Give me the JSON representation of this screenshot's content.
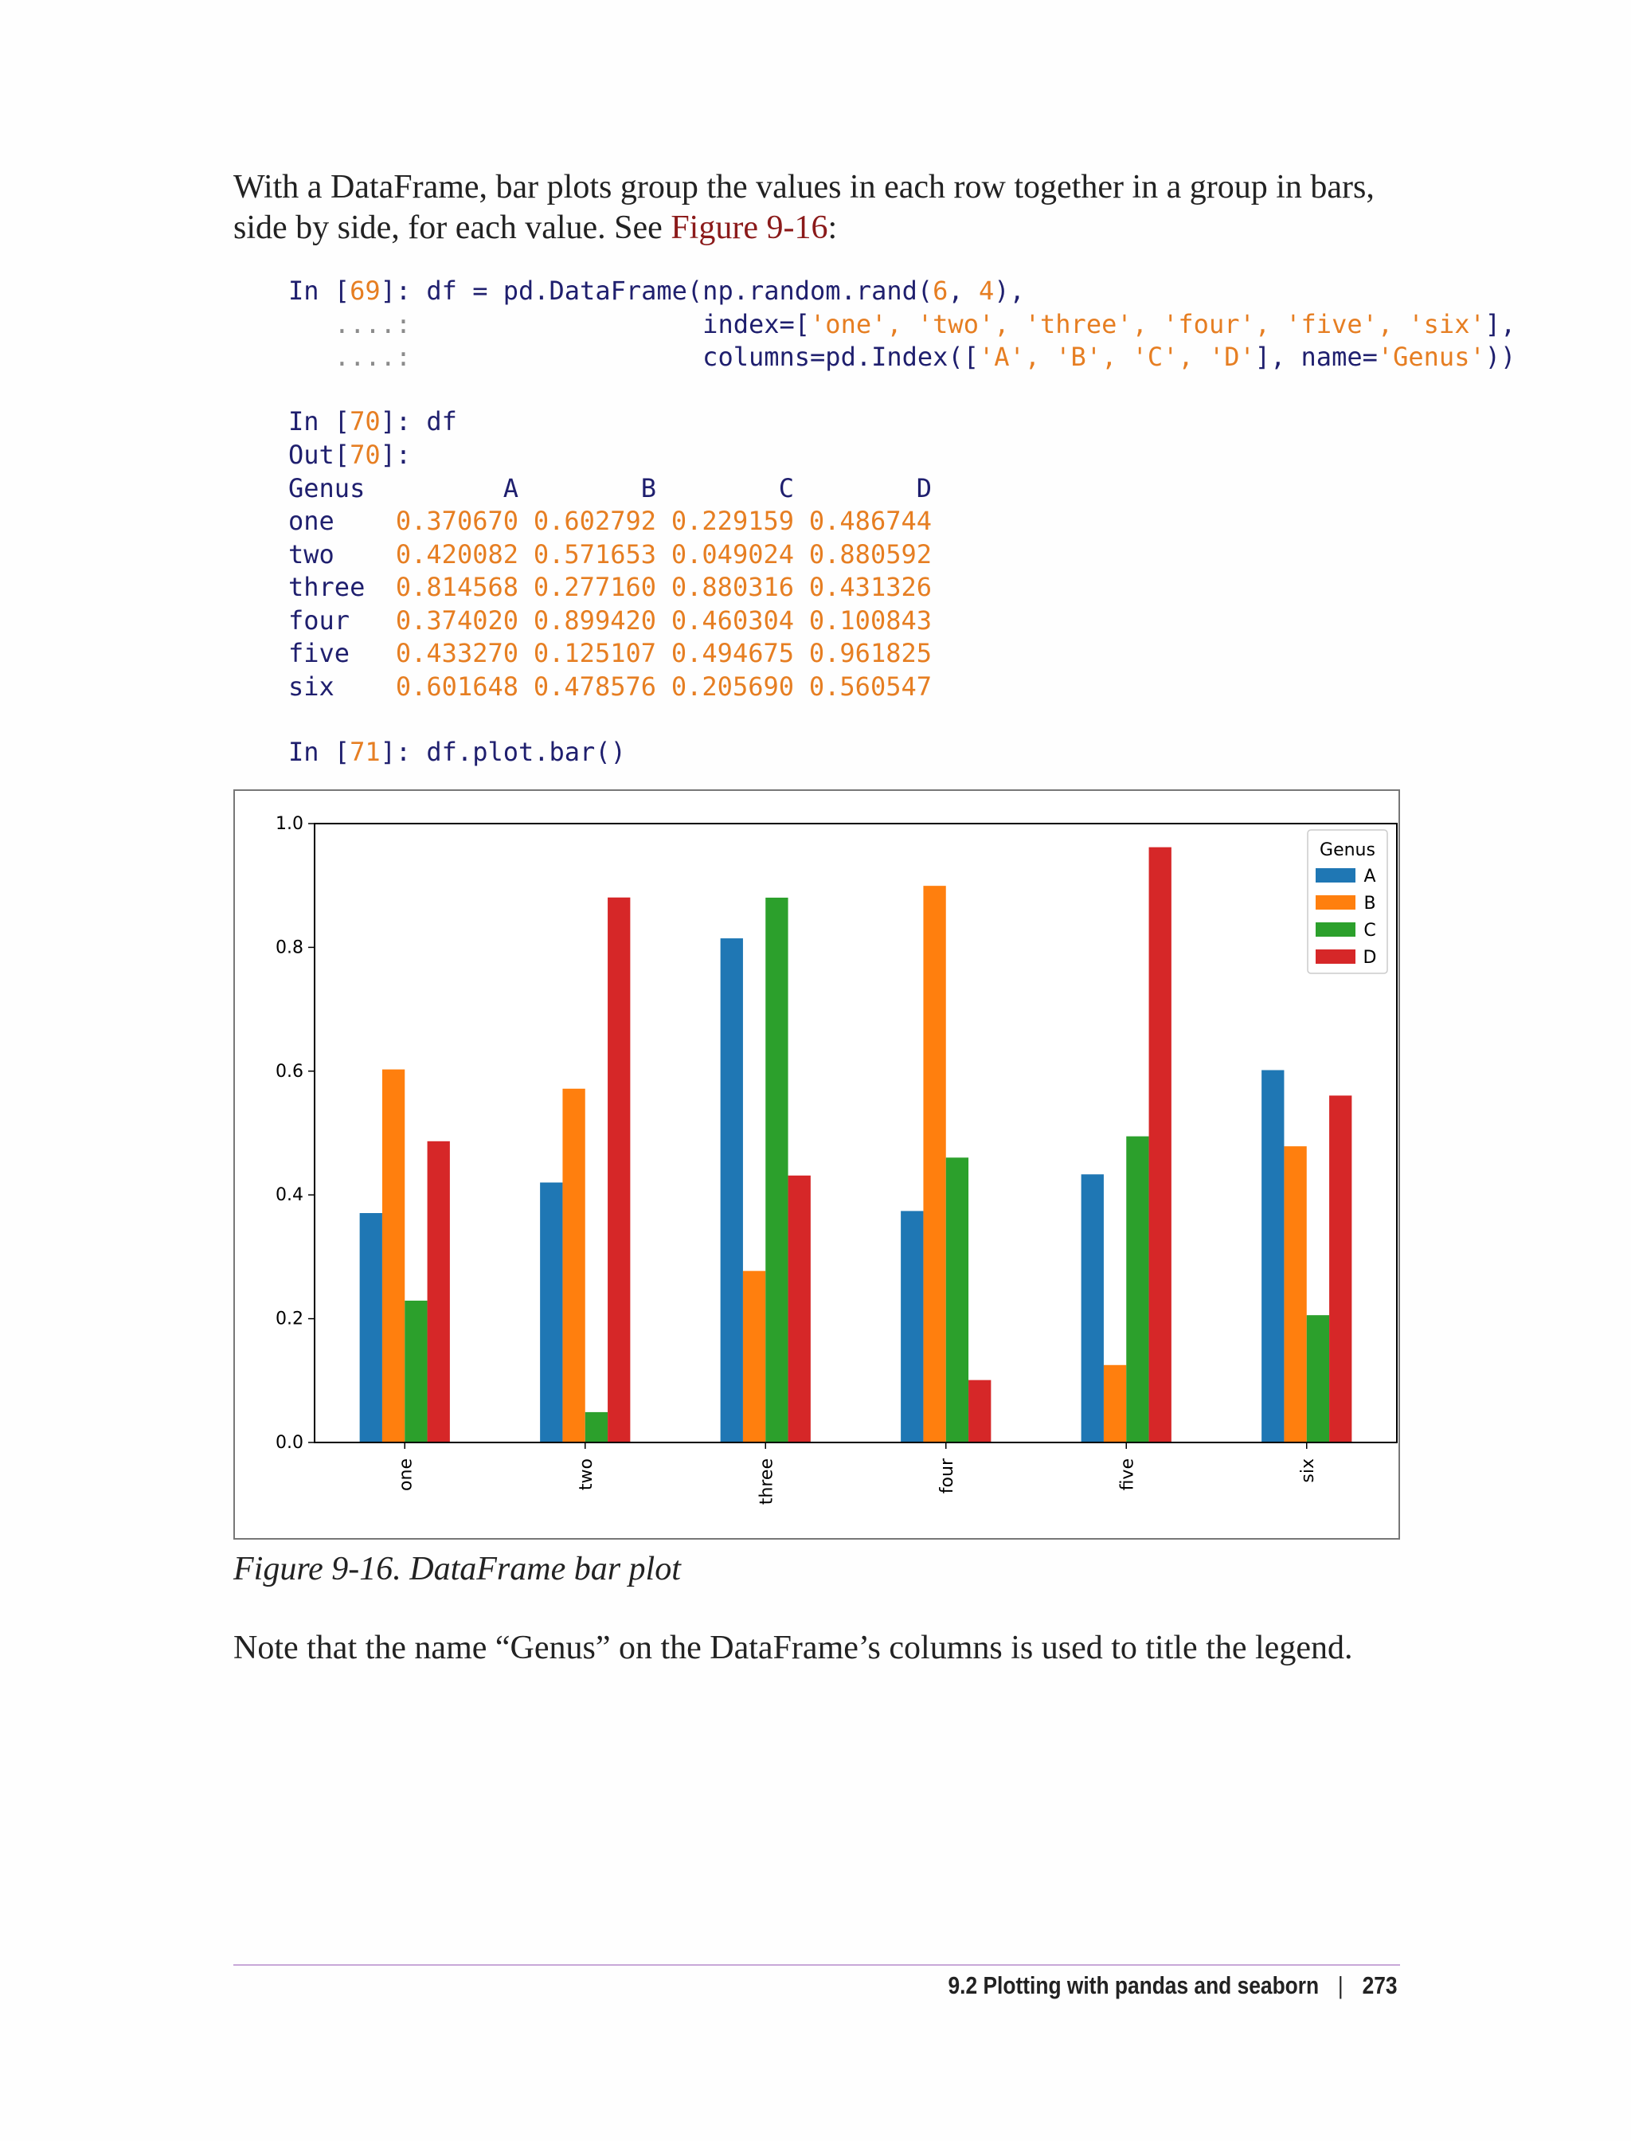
{
  "intro": {
    "text_before": "With a DataFrame, bar plots group the values in each row together in a group in bars, side by side, for each value. See ",
    "xref": "Figure 9-16",
    "text_after": ":"
  },
  "code": {
    "in69_prompt": "In [",
    "in69_num": "69",
    "in69_close": "]: ",
    "line1_code": "df = pd.DataFrame(np.random.rand(",
    "line1_n1": "6",
    "line1_comma": ", ",
    "line1_n2": "4",
    "line1_end": "),",
    "cont": "   ....:",
    "line2_pad": "                   ",
    "line2_a": "index=[",
    "line2_s": "'one', 'two', 'three', 'four', 'five', 'six'",
    "line2_b": "],",
    "line3_a": "columns=pd.Index([",
    "line3_s": "'A', 'B', 'C', 'D'",
    "line3_b": "], name=",
    "line3_s2": "'Genus'",
    "line3_c": "))",
    "in70_num": "70",
    "in70_code": "df",
    "out70_prompt": "Out[",
    "out70_close": "]:",
    "in71_num": "71",
    "in71_code": "df.plot.bar()"
  },
  "table": {
    "index_name": "Genus",
    "columns": [
      "A",
      "B",
      "C",
      "D"
    ],
    "rows": [
      {
        "label": "one",
        "values": [
          "0.370670",
          "0.602792",
          "0.229159",
          "0.486744"
        ]
      },
      {
        "label": "two",
        "values": [
          "0.420082",
          "0.571653",
          "0.049024",
          "0.880592"
        ]
      },
      {
        "label": "three",
        "values": [
          "0.814568",
          "0.277160",
          "0.880316",
          "0.431326"
        ]
      },
      {
        "label": "four",
        "values": [
          "0.374020",
          "0.899420",
          "0.460304",
          "0.100843"
        ]
      },
      {
        "label": "five",
        "values": [
          "0.433270",
          "0.125107",
          "0.494675",
          "0.961825"
        ]
      },
      {
        "label": "six",
        "values": [
          "0.601648",
          "0.478576",
          "0.205690",
          "0.560547"
        ]
      }
    ]
  },
  "chart_data": {
    "type": "bar",
    "categories": [
      "one",
      "two",
      "three",
      "four",
      "five",
      "six"
    ],
    "series": [
      {
        "name": "A",
        "color": "#1f77b4",
        "values": [
          0.37067,
          0.420082,
          0.814568,
          0.37402,
          0.43327,
          0.601648
        ]
      },
      {
        "name": "B",
        "color": "#ff7f0e",
        "values": [
          0.602792,
          0.571653,
          0.27716,
          0.89942,
          0.125107,
          0.478576
        ]
      },
      {
        "name": "C",
        "color": "#2ca02c",
        "values": [
          0.229159,
          0.049024,
          0.880316,
          0.460304,
          0.494675,
          0.20569
        ]
      },
      {
        "name": "D",
        "color": "#d62728",
        "values": [
          0.486744,
          0.880592,
          0.431326,
          0.100843,
          0.961825,
          0.560547
        ]
      }
    ],
    "ylim": [
      0,
      1.0
    ],
    "yticks": [
      "0.0",
      "0.2",
      "0.4",
      "0.6",
      "0.8",
      "1.0"
    ],
    "legend_title": "Genus",
    "legend_position": "top-right",
    "xtick_rotation": "vertical",
    "grid": false
  },
  "caption": "Figure 9-16. DataFrame bar plot",
  "note": "Note that the name “Genus” on the DataFrame’s columns is used to title the legend.",
  "footer": {
    "section": "9.2 Plotting with pandas and seaborn",
    "separator": "|",
    "page": "273"
  }
}
